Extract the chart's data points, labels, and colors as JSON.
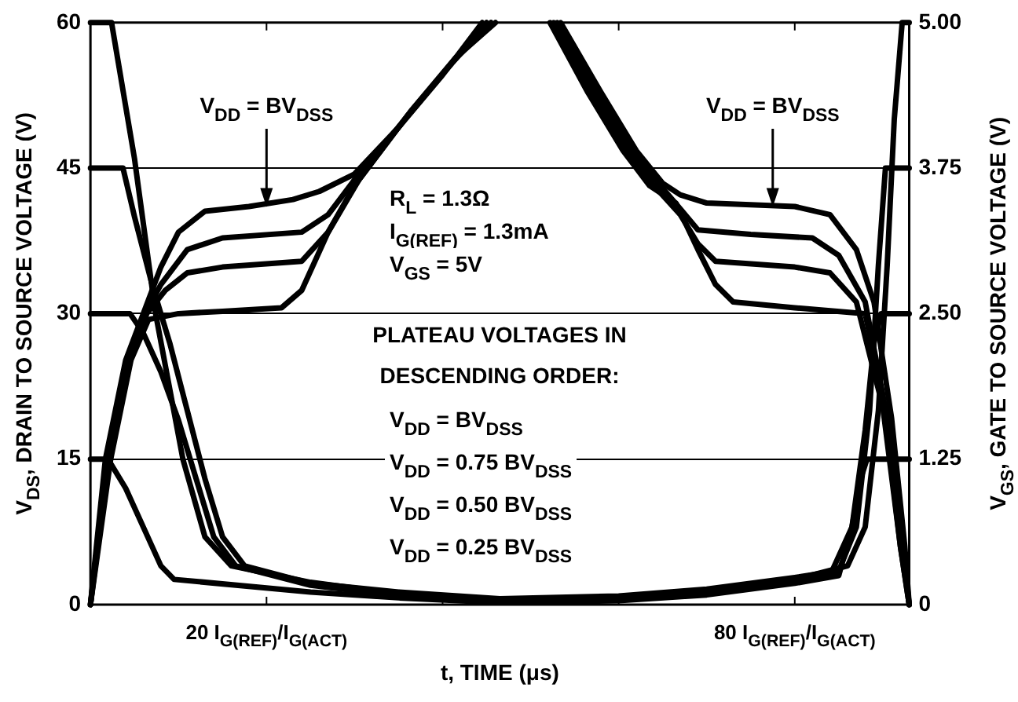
{
  "chart_data": {
    "type": "line",
    "xlabel": "t, TIME (μs)",
    "ylabel": "V$_{DS}$, DRAIN TO SOURCE VOLTAGE (V)",
    "y2label": "V$_{GS}$, GATE TO SOURCE VOLTAGE (V)",
    "annotations": [
      {
        "text": "V$_{DD}$ = BV$_{DSS}$",
        "x": 20,
        "y": 41
      },
      {
        "text": "V$_{DD}$ = BV$_{DSS}$",
        "x": 77.5,
        "y": 41
      },
      "R$_{L}$ = 1.3Ω",
      "I$_{G(REF)}$ = 1.3mA",
      "V$_{GS}$ = 5V",
      "PLATEAU VOLTAGES IN",
      "DESCENDING ORDER:",
      "V$_{DD}$ = BV$_{DSS}$",
      "V$_{DD}$ = 0.75 BV$_{DSS}$",
      "V$_{DD}$ = 0.50 BV$_{DSS}$",
      "V$_{DD}$ = 0.25 BV$_{DSS}$"
    ],
    "xlim": [
      0,
      93
    ],
    "xticks": [
      {
        "value": 20,
        "label": "20 I$_{G(REF)}$/I$_{G(ACT)}$"
      },
      {
        "value": 40,
        "label": null
      },
      {
        "value": 60,
        "label": null
      },
      {
        "value": 80,
        "label": "80 I$_{G(REF)}$/I$_{G(ACT)}$"
      }
    ],
    "ylim": [
      0,
      60
    ],
    "yticks": [
      0,
      15,
      30,
      45,
      60
    ],
    "y2lim": [
      0,
      5
    ],
    "y2ticks": [
      0,
      1.25,
      {
        "value": 2.5,
        "label": "2.50"
      },
      3.75,
      {
        "value": 5,
        "label": "5.00"
      }
    ],
    "grid": "y",
    "legend": false,
    "marker": "none",
    "line_style": "solid",
    "series": [
      {
        "color": "#000000",
        "axis": "y",
        "x": [
          0,
          2.4,
          5,
          7.4,
          10.5,
          13,
          16,
          25,
          35,
          46.5,
          60,
          70,
          80,
          86,
          88,
          89.5,
          90.5,
          91.3,
          92.2,
          93
        ],
        "values": [
          60,
          60,
          46,
          30,
          15,
          7,
          4,
          2.3,
          1.1,
          0.4,
          0.7,
          1.4,
          2.6,
          4,
          8,
          20,
          35,
          50,
          60,
          60
        ]
      },
      {
        "color": "#000000",
        "axis": "y",
        "x": [
          0,
          3.7,
          5,
          7,
          9,
          11,
          13,
          15,
          17.5,
          25,
          35,
          46.5,
          60,
          70,
          80,
          85,
          87,
          88.5,
          89.5,
          90.3,
          93
        ],
        "values": [
          45,
          45,
          40,
          33,
          27,
          20,
          13,
          7,
          4,
          2.2,
          1.3,
          0.6,
          0.9,
          1.6,
          2.8,
          3.5,
          8,
          20,
          35,
          45,
          45
        ]
      },
      {
        "color": "#000000",
        "axis": "y",
        "x": [
          0,
          4.5,
          6,
          8,
          10,
          12,
          14,
          16.5,
          25,
          35,
          46.5,
          60,
          70,
          80,
          84,
          86.5,
          88,
          89,
          89.8,
          93
        ],
        "values": [
          30,
          30,
          28,
          24,
          19,
          13,
          7,
          4,
          2,
          0.9,
          0.3,
          0.5,
          1.2,
          2.4,
          3,
          8,
          18,
          27,
          30,
          30
        ]
      },
      {
        "color": "#000000",
        "axis": "y",
        "x": [
          0,
          2,
          4,
          6,
          8,
          9.5,
          25,
          35,
          46.5,
          60,
          70,
          80,
          85,
          86.5,
          87.5,
          88.2,
          93
        ],
        "values": [
          15,
          15,
          12,
          8,
          4,
          2.6,
          1.3,
          0.7,
          0.2,
          0.4,
          1,
          2.2,
          3,
          8,
          13,
          15,
          15
        ]
      },
      {
        "color": "#000000",
        "axis": "y2",
        "x": [
          0,
          1.7,
          4,
          6,
          8,
          10,
          13,
          18,
          23,
          26,
          30,
          35,
          40,
          44.5
        ],
        "values": [
          0,
          1.25,
          2.1,
          2.5,
          2.9,
          3.2,
          3.38,
          3.42,
          3.48,
          3.55,
          3.7,
          4.1,
          4.55,
          5
        ]
      },
      {
        "color": "#000000",
        "axis": "y2",
        "x": [
          0,
          1.9,
          4.2,
          6.2,
          8,
          11,
          15,
          24,
          27,
          30,
          35.5,
          40.5,
          45
        ],
        "values": [
          0,
          1.25,
          2.1,
          2.5,
          2.75,
          3.05,
          3.15,
          3.2,
          3.35,
          3.65,
          4.15,
          4.6,
          5
        ]
      },
      {
        "color": "#000000",
        "axis": "y2",
        "x": [
          0,
          2.1,
          4.4,
          6.4,
          8.5,
          11,
          15,
          24,
          27,
          30,
          36,
          41,
          45.5
        ],
        "values": [
          0,
          1.25,
          2.1,
          2.5,
          2.7,
          2.85,
          2.9,
          2.95,
          3.2,
          3.6,
          4.2,
          4.65,
          5
        ]
      },
      {
        "color": "#000000",
        "axis": "y2",
        "x": [
          0,
          2.3,
          4.6,
          6.6,
          10,
          15,
          21.7,
          24,
          27,
          30.5,
          36.5,
          41.5,
          46
        ],
        "values": [
          0,
          1.25,
          2.1,
          2.45,
          2.5,
          2.52,
          2.55,
          2.7,
          3.2,
          3.65,
          4.25,
          4.7,
          5
        ]
      },
      {
        "color": "#000000",
        "axis": "y2",
        "x": [
          53.4,
          58,
          62,
          65,
          67,
          70,
          80,
          84,
          87,
          89,
          91,
          92.5,
          93
        ],
        "values": [
          5,
          4.4,
          3.9,
          3.62,
          3.52,
          3.45,
          3.42,
          3.35,
          3.05,
          2.6,
          1.6,
          0.5,
          0
        ]
      },
      {
        "color": "#000000",
        "axis": "y2",
        "x": [
          53,
          57.5,
          61.5,
          64.5,
          67,
          69,
          75,
          82,
          85,
          88,
          90.5,
          92.3,
          93
        ],
        "values": [
          5,
          4.4,
          3.9,
          3.62,
          3.4,
          3.22,
          3.18,
          3.15,
          3,
          2.6,
          1.6,
          0.5,
          0
        ]
      },
      {
        "color": "#000000",
        "axis": "y2",
        "x": [
          52.6,
          57,
          61,
          64,
          67,
          69,
          71,
          80,
          84,
          87,
          90,
          92,
          93
        ],
        "values": [
          5,
          4.4,
          3.9,
          3.6,
          3.35,
          3.1,
          2.95,
          2.9,
          2.85,
          2.6,
          1.7,
          0.5,
          0
        ]
      },
      {
        "color": "#000000",
        "axis": "y2",
        "x": [
          52.2,
          56.5,
          60.5,
          63.5,
          66.5,
          69,
          71,
          73,
          80,
          88,
          90,
          92,
          93
        ],
        "values": [
          5,
          4.4,
          3.9,
          3.6,
          3.45,
          3.05,
          2.75,
          2.6,
          2.55,
          2.5,
          1.8,
          0.5,
          0
        ]
      }
    ]
  }
}
